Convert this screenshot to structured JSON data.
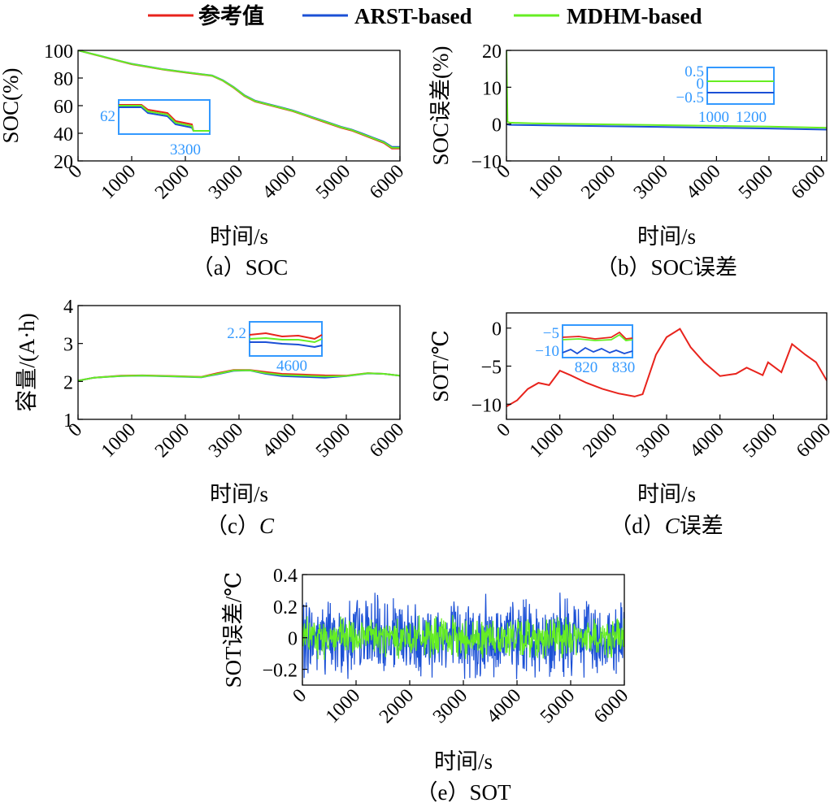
{
  "legend": {
    "items": [
      {
        "label": "参考值",
        "color": "#e8231c"
      },
      {
        "label": "ARST-based",
        "color": "#1b50d6"
      },
      {
        "label": "MDHM-based",
        "color": "#66ee22"
      }
    ]
  },
  "colors": {
    "inset_frame": "#3399ff",
    "ref": "#e8231c",
    "arst": "#1b50d6",
    "mdhm": "#66ee22"
  },
  "chart_data": [
    {
      "id": "a",
      "type": "line",
      "caption": "（a）SOC",
      "xlabel": "时间/s",
      "ylabel": "SOC(%)",
      "xlim": [
        0,
        6000
      ],
      "ylim": [
        20,
        100
      ],
      "xticks": [
        0,
        1000,
        2000,
        3000,
        4000,
        5000,
        6000
      ],
      "yticks": [
        20,
        40,
        60,
        80,
        100
      ],
      "x": [
        0,
        100,
        300,
        500,
        800,
        1000,
        1300,
        1600,
        2000,
        2300,
        2500,
        2700,
        2900,
        3100,
        3300,
        3500,
        3800,
        4000,
        4300,
        4600,
        4900,
        5100,
        5300,
        5500,
        5700,
        5850,
        6000
      ],
      "series": [
        {
          "name": "参考值",
          "values": [
            100,
            99,
            97,
            95,
            92,
            90,
            88,
            86,
            84,
            82.5,
            81.5,
            78,
            73,
            67,
            63,
            61,
            58,
            56,
            52,
            48,
            44,
            42,
            39,
            36,
            33,
            29,
            29
          ]
        },
        {
          "name": "ARST-based",
          "values": [
            100,
            99,
            97.2,
            95.2,
            92.2,
            90.3,
            88.3,
            86.3,
            84.3,
            82.8,
            81.8,
            78.4,
            73.5,
            67.6,
            63.6,
            61.6,
            58.6,
            56.6,
            52.6,
            48.7,
            44.7,
            42.7,
            39.8,
            36.8,
            33.9,
            30.2,
            30.2
          ]
        },
        {
          "name": "MDHM-based",
          "values": [
            100,
            99,
            97.1,
            95.1,
            92.1,
            90.2,
            88.2,
            86.2,
            84.2,
            82.7,
            81.7,
            78.2,
            73.3,
            67.3,
            63.3,
            61.3,
            58.3,
            56.3,
            52.3,
            48.4,
            44.4,
            42.4,
            39.4,
            36.4,
            33.5,
            29.6,
            29.6
          ]
        }
      ],
      "inset": {
        "xtick": "3300",
        "ytick": "62"
      }
    },
    {
      "id": "b",
      "type": "line",
      "caption": "（b）SOC误差",
      "xlabel": "时间/s",
      "ylabel": "SOC误差(%)",
      "xlim": [
        0,
        6100
      ],
      "ylim": [
        -10,
        20
      ],
      "xticks": [
        0,
        1000,
        2000,
        3000,
        4000,
        5000,
        6000
      ],
      "yticks": [
        -10,
        0,
        10,
        20
      ],
      "x": [
        0,
        20,
        60,
        500,
        1000,
        2000,
        3000,
        4000,
        5000,
        6100
      ],
      "series": [
        {
          "name": "ARST-based",
          "values": [
            0,
            -0.1,
            -0.2,
            -0.3,
            -0.4,
            -0.6,
            -0.8,
            -1.0,
            -1.2,
            -1.5
          ]
        },
        {
          "name": "MDHM-based",
          "values": [
            20,
            0.6,
            0.4,
            0.2,
            0.1,
            -0.1,
            -0.3,
            -0.5,
            -0.7,
            -1.0
          ]
        }
      ],
      "inset": {
        "xticks": [
          "1000",
          "1200"
        ],
        "yticks": [
          "0.5",
          "0",
          "−0.5"
        ]
      }
    },
    {
      "id": "c",
      "type": "line",
      "caption": "（c）",
      "caption_symbol": "C",
      "xlabel": "时间/s",
      "ylabel": "容量/(A·h)",
      "xlim": [
        0,
        6000
      ],
      "ylim": [
        1,
        4
      ],
      "xticks": [
        0,
        1000,
        2000,
        3000,
        4000,
        5000,
        6000
      ],
      "yticks": [
        1,
        2,
        3,
        4
      ],
      "x": [
        0,
        300,
        800,
        1200,
        1800,
        2300,
        2600,
        2900,
        3200,
        3500,
        3800,
        4200,
        4600,
        5000,
        5400,
        5700,
        6000
      ],
      "series": [
        {
          "name": "参考值",
          "values": [
            2.02,
            2.1,
            2.15,
            2.16,
            2.14,
            2.12,
            2.22,
            2.3,
            2.3,
            2.25,
            2.2,
            2.18,
            2.16,
            2.15,
            2.22,
            2.2,
            2.15
          ]
        },
        {
          "name": "ARST-based",
          "values": [
            2.02,
            2.1,
            2.14,
            2.15,
            2.13,
            2.11,
            2.19,
            2.28,
            2.29,
            2.2,
            2.14,
            2.12,
            2.1,
            2.14,
            2.21,
            2.2,
            2.15
          ]
        },
        {
          "name": "MDHM-based",
          "values": [
            2.02,
            2.1,
            2.145,
            2.155,
            2.135,
            2.115,
            2.2,
            2.29,
            2.295,
            2.22,
            2.17,
            2.15,
            2.13,
            2.145,
            2.215,
            2.2,
            2.15
          ]
        }
      ],
      "inset": {
        "xtick": "4600",
        "ytick": "2.2"
      }
    },
    {
      "id": "d",
      "type": "line",
      "caption": "（d）",
      "caption_symbol": "C",
      "caption_suffix": "误差",
      "xlabel": "时间/s",
      "ylabel": "SOT/℃",
      "xlim": [
        0,
        6000
      ],
      "ylim": [
        -12,
        2
      ],
      "xticks": [
        0,
        1000,
        2000,
        3000,
        4000,
        5000,
        6000
      ],
      "yticks": [
        -10,
        -5,
        0
      ],
      "x": [
        0,
        200,
        400,
        600,
        800,
        1000,
        1200,
        1500,
        1800,
        2100,
        2400,
        2550,
        2800,
        3000,
        3250,
        3450,
        3700,
        4000,
        4300,
        4500,
        4800,
        4900,
        5150,
        5350,
        5600,
        5800,
        6000
      ],
      "series": [
        {
          "name": "参考值",
          "values": [
            -10.3,
            -9.5,
            -8,
            -7.2,
            -7.5,
            -5.6,
            -6.2,
            -7.2,
            -8,
            -8.6,
            -9,
            -8.7,
            -3.5,
            -1.2,
            -0.1,
            -2.5,
            -4.5,
            -6.3,
            -6,
            -5.2,
            -6.2,
            -4.5,
            -5.8,
            -2.1,
            -3.5,
            -4.5,
            -6.9
          ]
        }
      ],
      "inset": {
        "xticks": [
          "820",
          "830"
        ],
        "yticks": [
          "−5",
          "−10"
        ]
      }
    },
    {
      "id": "e",
      "type": "line",
      "caption": "（e）SOT",
      "xlabel": "时间/s",
      "ylabel": "SOT误差/℃",
      "xlim": [
        0,
        6000
      ],
      "ylim": [
        -0.3,
        0.4
      ],
      "xticks": [
        0,
        1000,
        2000,
        3000,
        4000,
        5000,
        6000
      ],
      "yticks": [
        -0.2,
        0,
        0.2,
        0.4
      ],
      "series": [
        {
          "name": "ARST-based",
          "amplitude": 0.3
        },
        {
          "name": "MDHM-based",
          "amplitude": 0.15
        }
      ]
    }
  ]
}
